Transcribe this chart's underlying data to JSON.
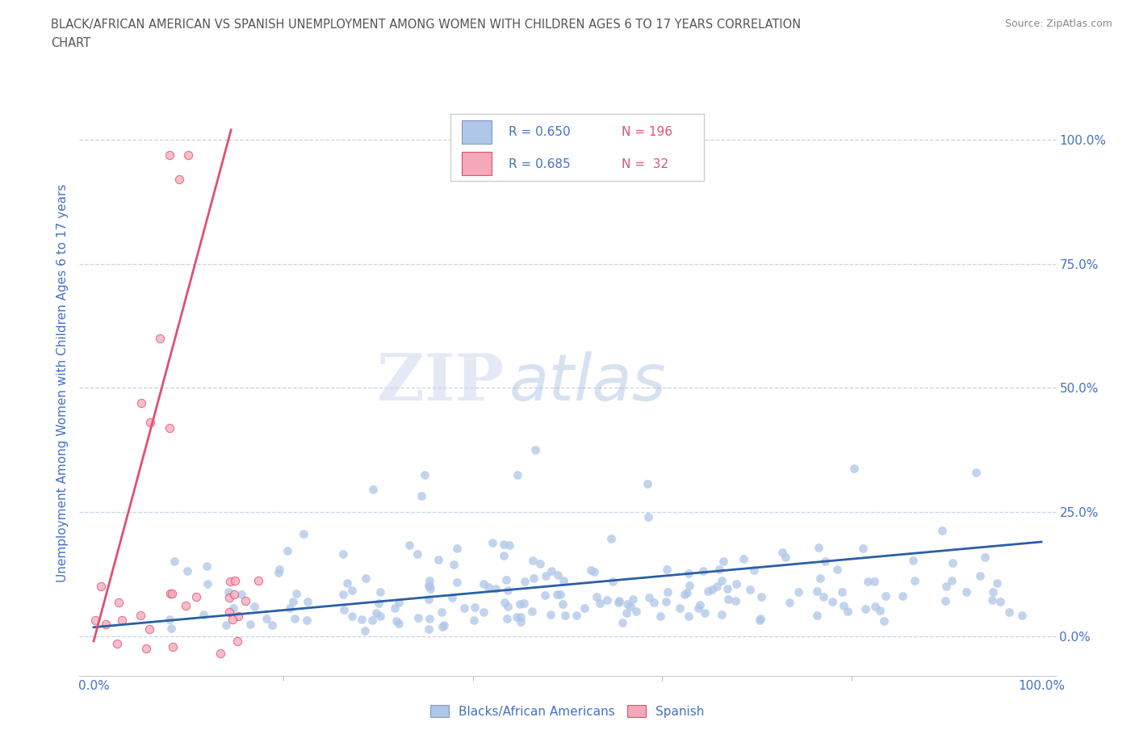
{
  "title_line1": "BLACK/AFRICAN AMERICAN VS SPANISH UNEMPLOYMENT AMONG WOMEN WITH CHILDREN AGES 6 TO 17 YEARS CORRELATION",
  "title_line2": "CHART",
  "source": "Source: ZipAtlas.com",
  "ylabel": "Unemployment Among Women with Children Ages 6 to 17 years",
  "blue_R": 0.65,
  "blue_N": 196,
  "pink_R": 0.685,
  "pink_N": 32,
  "blue_color": "#aec6e8",
  "blue_line_color": "#2a5fa5",
  "pink_color": "#f4a8b8",
  "pink_line_color": "#e05070",
  "blue_label": "Blacks/African Americans",
  "pink_label": "Spanish",
  "watermark_zip": "ZIP",
  "watermark_atlas": "atlas",
  "background_color": "#ffffff",
  "grid_color": "#c8d4e8",
  "title_color": "#555555",
  "axis_label_color": "#4472c4",
  "legend_R_color": "#4472c4",
  "legend_N_color": "#e05070",
  "ytick_labels": [
    "0.0%",
    "25.0%",
    "50.0%",
    "75.0%",
    "100.0%"
  ],
  "ytick_vals": [
    0.0,
    0.25,
    0.5,
    0.75,
    1.0
  ],
  "xtick_labels": [
    "0.0%",
    "100.0%"
  ],
  "xtick_vals": [
    0.0,
    1.0
  ]
}
